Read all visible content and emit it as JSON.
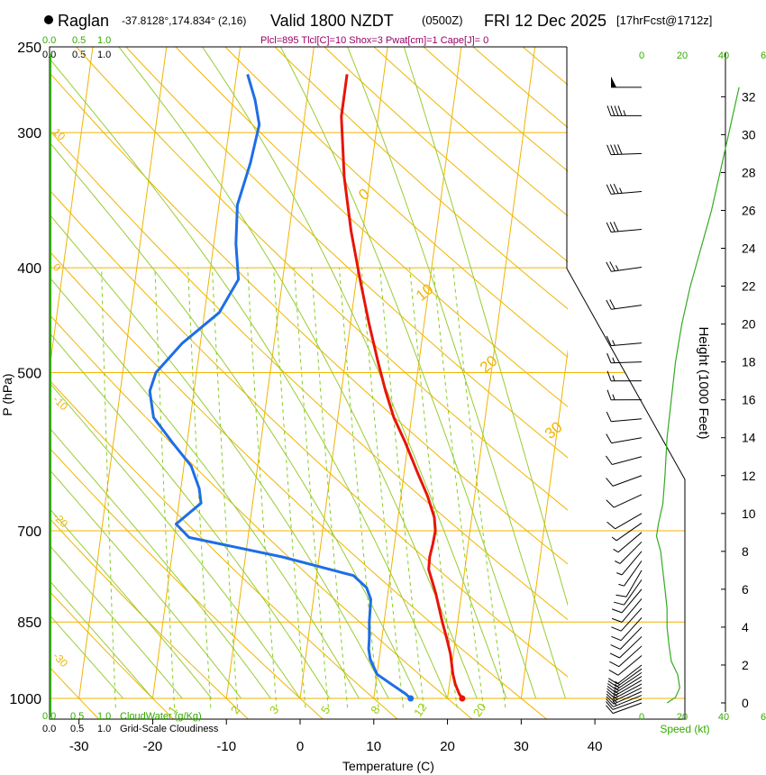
{
  "header": {
    "location_name": "Raglan",
    "coords": "-37.8128°,174.834° (2,16)",
    "valid": "Valid 1800 NZDT",
    "zulu": "(0500Z)",
    "date": "FRI 12 Dec 2025",
    "fcst": "[17hrFcst@1712z]",
    "params": "Plcl=895 Tlcl[C]=10 Shox=3 Pwat[cm]=1 Cape[J]= 0",
    "colors": {
      "params": "#990066",
      "green": "#33aa00",
      "orange": "#f0b400",
      "temp": "#e8140a",
      "dew": "#1e6ee6"
    }
  },
  "chart_data": {
    "type": "line",
    "title": "Raglan skew-T sounding, Valid 1800 NZDT FRI 12 Dec 2025",
    "xlabel": "Temperature (C)",
    "ylabel": "P (hPa)",
    "y2label": "Height (1000 Feet)",
    "x_ticks": [
      "-30",
      "-20",
      "-10",
      "0",
      "10",
      "20",
      "30",
      "40"
    ],
    "x_tick_values": [
      -30,
      -20,
      -10,
      0,
      10,
      20,
      30,
      40
    ],
    "p_ticks": [
      "250",
      "300",
      "400",
      "500",
      "700",
      "850",
      "1000"
    ],
    "p_tick_values": [
      250,
      300,
      400,
      500,
      700,
      850,
      1000
    ],
    "height_ticks": [
      "0",
      "2",
      "4",
      "6",
      "8",
      "10",
      "12",
      "14",
      "16",
      "18",
      "20",
      "22",
      "24",
      "26",
      "28",
      "30",
      "32"
    ],
    "isotherm_labels": [
      {
        "text": "10",
        "t": 10,
        "p": 300
      },
      {
        "text": "0",
        "t": 0,
        "p": 400
      },
      {
        "text": "-10",
        "t": -10,
        "p": 530
      },
      {
        "text": "-20",
        "t": -20,
        "p": 680
      },
      {
        "text": "-30",
        "t": -30,
        "p": 915
      }
    ],
    "isotherm_labels_right": [
      {
        "text": "0",
        "t": 0,
        "p": 345
      },
      {
        "text": "10",
        "t": 10,
        "p": 425
      },
      {
        "text": "20",
        "t": 20,
        "p": 495
      },
      {
        "text": "30",
        "t": 30,
        "p": 570
      }
    ],
    "mixing_labels": [
      "1",
      "2",
      "3",
      "5",
      "8",
      "12",
      "20"
    ],
    "mixing_ratio_values": [
      1,
      2,
      3,
      5,
      8,
      12,
      20
    ],
    "series": [
      {
        "name": "Temperature",
        "t": [
          22,
          21.5,
          20.8,
          20.3,
          19.6,
          18.8,
          17.9,
          16.5,
          15.1,
          15.0,
          15.2,
          15.3,
          14.9,
          13.6,
          11.9,
          9.6,
          7.6,
          6.0,
          4.5,
          2.5,
          0.5,
          -1.6,
          -3.5,
          -5.0,
          -5.0
        ],
        "p": [
          1000,
          990,
          970,
          950,
          910,
          880,
          850,
          800,
          760,
          740,
          720,
          700,
          680,
          650,
          620,
          580,
          550,
          520,
          490,
          450,
          410,
          370,
          330,
          290,
          265
        ]
      },
      {
        "name": "Dewpoint",
        "t": [
          15,
          14.2,
          12.1,
          10.0,
          8.8,
          8.4,
          8.3,
          8.0,
          7.8,
          7.0,
          5.0,
          -5.0,
          -18.0,
          -20.0,
          -17.0,
          -17.5,
          -19.0,
          -22.0,
          -25.0,
          -26.0,
          -25.5,
          -22.5,
          -18.0,
          -16.0,
          -17.0,
          -17.5,
          -16.5,
          -16.0,
          -17.0,
          -18.5
        ],
        "p": [
          1000,
          990,
          970,
          950,
          920,
          900,
          880,
          850,
          810,
          790,
          770,
          740,
          710,
          690,
          660,
          640,
          610,
          580,
          550,
          520,
          500,
          470,
          440,
          410,
          380,
          350,
          320,
          295,
          280,
          265
        ]
      }
    ],
    "surface_points": [
      {
        "name": "surface-temperature",
        "t": 22,
        "p": 1000
      },
      {
        "name": "surface-dewpoint",
        "t": 15,
        "p": 1000
      }
    ],
    "panel_left_top": {
      "line1": [
        "0.0",
        "0.5",
        "1.0"
      ],
      "line2": [
        "0.0",
        "0.5",
        "1.0"
      ]
    },
    "panel_left_bottom": {
      "line1": [
        "0.0",
        "0.5",
        "1.0"
      ],
      "label1": "CloudWater (g/Kg)",
      "line2": [
        "0.0",
        "0.5",
        "1.0"
      ],
      "label2": "Grid-Scale Cloudiness"
    },
    "wind_speed_ticks": [
      "0",
      "20",
      "40",
      "6"
    ],
    "wind_speed_label": "Speed (kt)",
    "wind_speed_profile_kt": {
      "h_kft": [
        0,
        0.3,
        0.8,
        1.5,
        2.2,
        3.0,
        4.0,
        5.0,
        6.0,
        7.0,
        8.0,
        8.8,
        9.5,
        10.5,
        12.0,
        14.0,
        16.0,
        18.0,
        20.0,
        22.0,
        24.0,
        26.0,
        28.0,
        30.0,
        32.5
      ],
      "speed": [
        12,
        16,
        18,
        17,
        14,
        13,
        12,
        12,
        11,
        10,
        9,
        7,
        8,
        10,
        11,
        12,
        14,
        16,
        19,
        23,
        28,
        33,
        37,
        41,
        46
      ]
    },
    "wind_barbs": {
      "h_kft": [
        0.0,
        0.2,
        0.4,
        0.6,
        0.8,
        1.0,
        1.2,
        1.4,
        1.6,
        1.8,
        2.0,
        2.5,
        3.0,
        3.5,
        4.0,
        4.5,
        5.0,
        5.5,
        6.0,
        6.5,
        7.0,
        7.5,
        8.0,
        8.5,
        9.0,
        9.5,
        10.0,
        11.0,
        12.0,
        13.0,
        14.0,
        15.0,
        16.0,
        17.0,
        18.0,
        19.0,
        21.0,
        23.0,
        25.0,
        27.0,
        29.0,
        31.0,
        32.5
      ],
      "dir": [
        250,
        250,
        248,
        246,
        244,
        242,
        240,
        238,
        236,
        234,
        232,
        230,
        228,
        226,
        224,
        222,
        222,
        220,
        220,
        215,
        210,
        215,
        220,
        225,
        230,
        235,
        240,
        245,
        250,
        255,
        260,
        265,
        270,
        270,
        268,
        265,
        262,
        262,
        265,
        265,
        268,
        270,
        270
      ],
      "speed": [
        12,
        14,
        15,
        16,
        17,
        18,
        18,
        17,
        16,
        15,
        14,
        13,
        12,
        12,
        12,
        12,
        12,
        12,
        11,
        10,
        10,
        9,
        8,
        8,
        8,
        9,
        10,
        11,
        12,
        12,
        12,
        14,
        15,
        16,
        17,
        18,
        22,
        27,
        33,
        37,
        41,
        47,
        52
      ]
    }
  }
}
